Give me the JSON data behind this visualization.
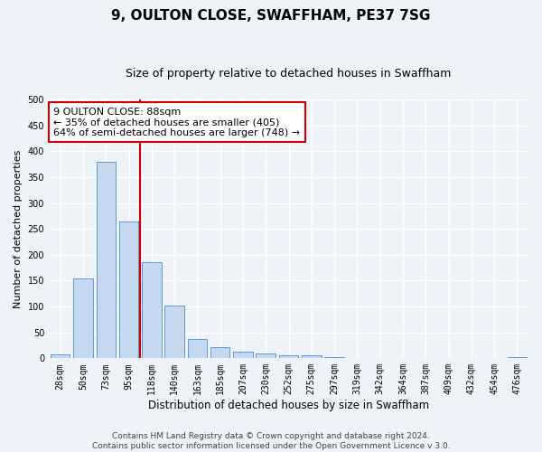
{
  "title": "9, OULTON CLOSE, SWAFFHAM, PE37 7SG",
  "subtitle": "Size of property relative to detached houses in Swaffham",
  "xlabel": "Distribution of detached houses by size in Swaffham",
  "ylabel": "Number of detached properties",
  "footer_line1": "Contains HM Land Registry data © Crown copyright and database right 2024.",
  "footer_line2": "Contains public sector information licensed under the Open Government Licence v 3.0.",
  "annotation_title": "9 OULTON CLOSE: 88sqm",
  "annotation_line2": "← 35% of detached houses are smaller (405)",
  "annotation_line3": "64% of semi-detached houses are larger (748) →",
  "bar_labels": [
    "28sqm",
    "50sqm",
    "73sqm",
    "95sqm",
    "118sqm",
    "140sqm",
    "163sqm",
    "185sqm",
    "207sqm",
    "230sqm",
    "252sqm",
    "275sqm",
    "297sqm",
    "319sqm",
    "342sqm",
    "364sqm",
    "387sqm",
    "409sqm",
    "432sqm",
    "454sqm",
    "476sqm"
  ],
  "bar_values": [
    7,
    155,
    380,
    265,
    185,
    102,
    37,
    22,
    13,
    9,
    6,
    5,
    2,
    0,
    0,
    0,
    0,
    0,
    0,
    0,
    2
  ],
  "bar_color": "#c5d8f0",
  "bar_edge_color": "#5b9bd5",
  "vline_x": 3.5,
  "vline_color": "#cc0000",
  "ylim": [
    0,
    500
  ],
  "annotation_box_color": "#ffffff",
  "annotation_box_edge": "#cc0000",
  "bg_color": "#eef2f9",
  "grid_color": "#ffffff",
  "title_fontsize": 11,
  "subtitle_fontsize": 9,
  "ylabel_fontsize": 8,
  "tick_fontsize": 7,
  "footer_fontsize": 6.5,
  "annotation_fontsize": 8
}
